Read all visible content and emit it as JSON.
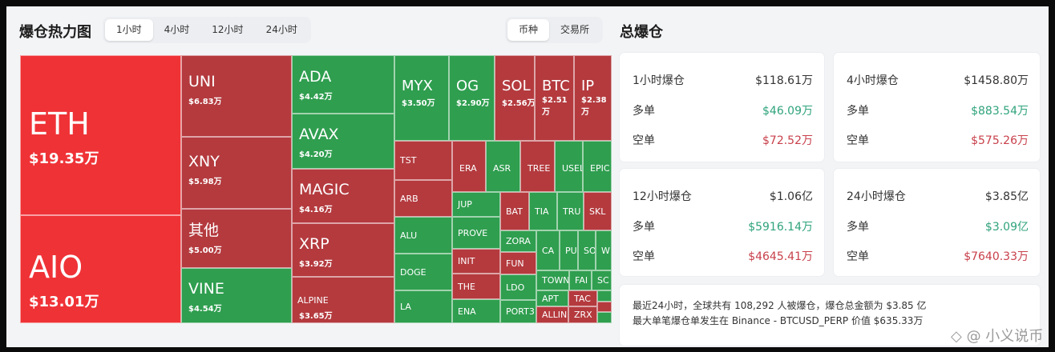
{
  "header": {
    "title": "爆仓热力图",
    "time_tabs": [
      "1小时",
      "4小时",
      "12小时",
      "24小时"
    ],
    "active_time_tab": 0,
    "mode_tabs": [
      "币种",
      "交易所"
    ],
    "active_mode_tab": 0,
    "right_title": "总爆仓"
  },
  "colors": {
    "red_bright": "#ef3236",
    "red_dark": "#b43a3e",
    "green": "#2f9e4f",
    "value_green": "#2fa37c",
    "value_red": "#c8404b"
  },
  "heatmap": [
    {
      "symbol": "ETH",
      "value": "$19.35万",
      "side": "red_bright"
    },
    {
      "symbol": "AIO",
      "value": "$13.01万",
      "side": "red_bright"
    },
    {
      "symbol": "UNI",
      "value": "$6.83万",
      "side": "red_dark"
    },
    {
      "symbol": "XNY",
      "value": "$5.98万",
      "side": "red_dark"
    },
    {
      "symbol": "其他",
      "value": "$5.00万",
      "side": "red_dark"
    },
    {
      "symbol": "VINE",
      "value": "$4.54万",
      "side": "green"
    },
    {
      "symbol": "ADA",
      "value": "$4.42万",
      "side": "green"
    },
    {
      "symbol": "AVAX",
      "value": "$4.20万",
      "side": "green"
    },
    {
      "symbol": "MAGIC",
      "value": "$4.16万",
      "side": "red_dark"
    },
    {
      "symbol": "XRP",
      "value": "$3.92万",
      "side": "red_dark"
    },
    {
      "symbol": "ALPINE",
      "value": "$3.65万",
      "side": "red_dark"
    },
    {
      "symbol": "MYX",
      "value": "$3.50万",
      "side": "green"
    },
    {
      "symbol": "OG",
      "value": "$2.90万",
      "side": "green"
    },
    {
      "symbol": "SOL",
      "value": "$2.56万",
      "side": "red_dark"
    },
    {
      "symbol": "BTC",
      "value": "$2.51万",
      "side": "red_dark"
    },
    {
      "symbol": "IP",
      "value": "$2.38万",
      "side": "red_dark"
    },
    {
      "symbol": "TST",
      "value": "",
      "side": "red_dark"
    },
    {
      "symbol": "ARB",
      "value": "",
      "side": "red_dark"
    },
    {
      "symbol": "ALU",
      "value": "",
      "side": "green"
    },
    {
      "symbol": "DOGE",
      "value": "",
      "side": "green"
    },
    {
      "symbol": "LA",
      "value": "",
      "side": "green"
    },
    {
      "symbol": "ERA",
      "value": "",
      "side": "red_dark"
    },
    {
      "symbol": "ASR",
      "value": "",
      "side": "green"
    },
    {
      "symbol": "TREE",
      "value": "",
      "side": "red_dark"
    },
    {
      "symbol": "USEL",
      "value": "",
      "side": "green"
    },
    {
      "symbol": "EPIC",
      "value": "",
      "side": "green"
    },
    {
      "symbol": "JUP",
      "value": "",
      "side": "green"
    },
    {
      "symbol": "PROVE",
      "value": "",
      "side": "green"
    },
    {
      "symbol": "INIT",
      "value": "",
      "side": "red_dark"
    },
    {
      "symbol": "THE",
      "value": "",
      "side": "red_dark"
    },
    {
      "symbol": "ENA",
      "value": "",
      "side": "green"
    },
    {
      "symbol": "BAT",
      "value": "",
      "side": "red_dark"
    },
    {
      "symbol": "TIA",
      "value": "",
      "side": "green"
    },
    {
      "symbol": "TRU",
      "value": "",
      "side": "green"
    },
    {
      "symbol": "SKL",
      "value": "",
      "side": "red_dark"
    },
    {
      "symbol": "ZORA",
      "value": "",
      "side": "green"
    },
    {
      "symbol": "FUN",
      "value": "",
      "side": "red_dark"
    },
    {
      "symbol": "LDO",
      "value": "",
      "side": "green"
    },
    {
      "symbol": "PORT3",
      "value": "",
      "side": "green"
    },
    {
      "symbol": "CA",
      "value": "",
      "side": "green"
    },
    {
      "symbol": "PU",
      "value": "",
      "side": "green"
    },
    {
      "symbol": "SO",
      "value": "",
      "side": "green"
    },
    {
      "symbol": "W",
      "value": "",
      "side": "green"
    },
    {
      "symbol": "TOWN",
      "value": "",
      "side": "green"
    },
    {
      "symbol": "FAI",
      "value": "",
      "side": "green"
    },
    {
      "symbol": "SC",
      "value": "",
      "side": "green"
    },
    {
      "symbol": "APT",
      "value": "",
      "side": "green"
    },
    {
      "symbol": "ALLIN",
      "value": "",
      "side": "red_dark"
    },
    {
      "symbol": "TAC",
      "value": "",
      "side": "red_dark"
    },
    {
      "symbol": "ZRX",
      "value": "",
      "side": "red_dark"
    },
    {
      "symbol": "",
      "value": "",
      "side": "green"
    },
    {
      "symbol": "",
      "value": "",
      "side": "red_dark"
    },
    {
      "symbol": "",
      "value": "",
      "side": "green"
    }
  ],
  "totals": [
    {
      "title": "1小时爆仓",
      "total": "$118.61万",
      "long_label": "多单",
      "long": "$46.09万",
      "short_label": "空单",
      "short": "$72.52万"
    },
    {
      "title": "4小时爆仓",
      "total": "$1458.80万",
      "long_label": "多单",
      "long": "$883.54万",
      "short_label": "空单",
      "short": "$575.26万"
    },
    {
      "title": "12小时爆仓",
      "total": "$1.06亿",
      "long_label": "多单",
      "long": "$5916.14万",
      "short_label": "空单",
      "short": "$4645.41万"
    },
    {
      "title": "24小时爆仓",
      "total": "$3.85亿",
      "long_label": "多单",
      "long": "$3.09亿",
      "short_label": "空单",
      "short": "$7640.33万"
    }
  ],
  "summary": {
    "line1": "最近24小时，全球共有 108,292 人被爆仓，爆仓总金额为 $3.85 亿",
    "line2": "最大单笔爆仓单发生在 Binance - BTCUSD_PERP 价值 $635.33万"
  },
  "watermark": "◇ @ 小义说币"
}
